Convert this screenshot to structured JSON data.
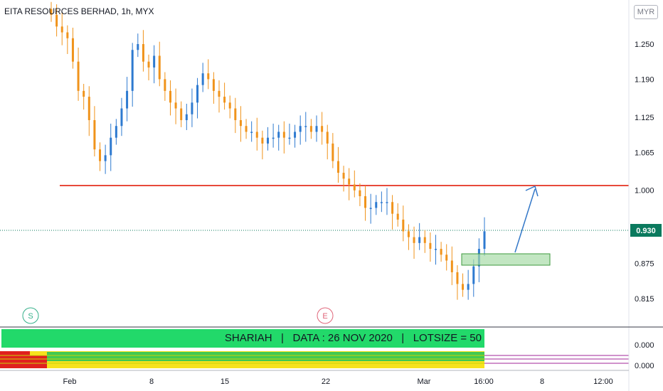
{
  "header": {
    "title": "EITA RESOURCES BERHAD, 1h, MYX",
    "currency": "MYR"
  },
  "price_scale": {
    "labels": [
      "1.250",
      "1.190",
      "1.125",
      "1.065",
      "1.000",
      "0.875",
      "0.815"
    ],
    "current_price": "0.930",
    "current_color": "#0b7a5e"
  },
  "indicator_scale": {
    "labels": [
      "0.000",
      "0.000"
    ]
  },
  "time_axis": {
    "labels": [
      "Feb",
      "8",
      "15",
      "22",
      "Mar",
      "16:00",
      "8",
      "12:00"
    ]
  },
  "markers": {
    "session_start": "S",
    "session_end": "E"
  },
  "banner": {
    "text": "SHARIAH   |   DATA : 26 NOV 2020   |   LOTSIZE = 50"
  },
  "colors": {
    "up": "#2e7ad0",
    "down": "#f0931b",
    "resistance": "#e84a3b",
    "banner": "#22d96a",
    "zone_fill": "#a8dca8",
    "arrow": "#3478c8"
  },
  "chart_data": {
    "type": "candlestick",
    "symbol": "EITA RESOURCES BERHAD",
    "interval": "1h",
    "exchange": "MYX",
    "currency": "MYR",
    "y_ticks": [
      1.25,
      1.19,
      1.125,
      1.065,
      1.0,
      0.875,
      0.815
    ],
    "ylim": [
      0.78,
      1.31
    ],
    "x_ticks": [
      "Feb",
      "8",
      "15",
      "22",
      "Mar",
      "16:00",
      "8",
      "12:00"
    ],
    "last_price": 0.93,
    "resistance_level": 1.005,
    "closes": [
      1.3,
      1.28,
      1.27,
      1.26,
      1.22,
      1.17,
      1.16,
      1.12,
      1.07,
      1.05,
      1.06,
      1.09,
      1.11,
      1.14,
      1.17,
      1.24,
      1.25,
      1.22,
      1.21,
      1.23,
      1.19,
      1.17,
      1.15,
      1.14,
      1.12,
      1.13,
      1.15,
      1.18,
      1.2,
      1.19,
      1.17,
      1.16,
      1.15,
      1.14,
      1.12,
      1.11,
      1.1,
      1.1,
      1.09,
      1.08,
      1.09,
      1.09,
      1.1,
      1.09,
      1.09,
      1.1,
      1.11,
      1.11,
      1.1,
      1.11,
      1.1,
      1.08,
      1.05,
      1.03,
      1.02,
      1.01,
      1.0,
      0.99,
      0.97,
      0.97,
      0.98,
      0.98,
      0.98,
      0.96,
      0.95,
      0.93,
      0.92,
      0.91,
      0.92,
      0.91,
      0.9,
      0.9,
      0.89,
      0.88,
      0.86,
      0.84,
      0.83,
      0.84,
      0.87,
      0.9,
      0.93
    ],
    "demand_zone": [
      0.872,
      0.89
    ],
    "target_arrow": {
      "from": 0.89,
      "to": 1.0
    },
    "session_marks": [
      "S",
      "E"
    ],
    "indicator": {
      "zero_label": "0.000"
    }
  }
}
